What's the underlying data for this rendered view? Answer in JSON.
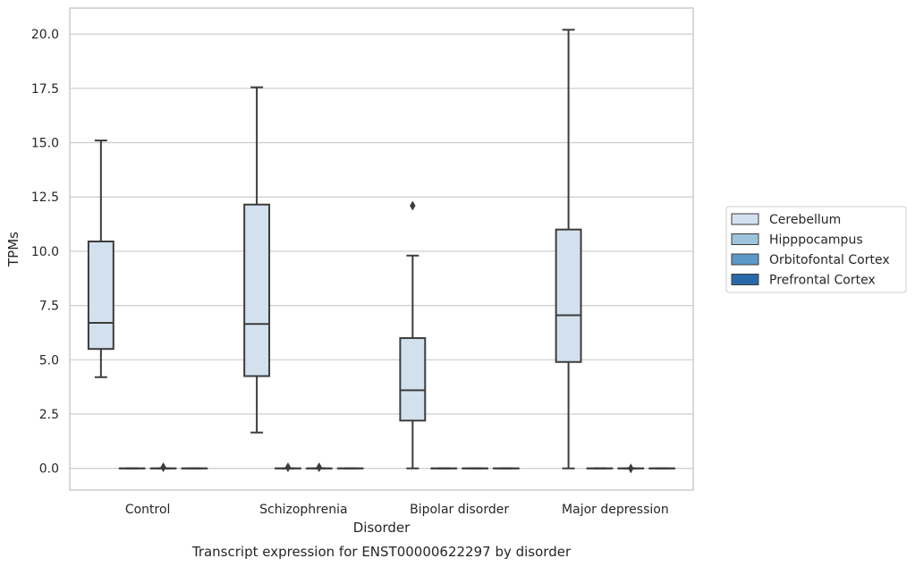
{
  "chart_data": {
    "type": "box",
    "caption": "Transcript expression for ENST00000622297 by disorder",
    "xlabel": "Disorder",
    "ylabel": "TPMs",
    "ylim": [
      -1.0,
      21.2
    ],
    "yticks": [
      0.0,
      2.5,
      5.0,
      7.5,
      10.0,
      12.5,
      15.0,
      17.5,
      20.0
    ],
    "ytick_labels": [
      "0.0",
      "2.5",
      "5.0",
      "7.5",
      "10.0",
      "12.5",
      "15.0",
      "17.5",
      "20.0"
    ],
    "grid": "horizontal",
    "legend_position": "right",
    "categories": [
      "Control",
      "Schizophrenia",
      "Bipolar disorder",
      "Major depression"
    ],
    "series": [
      {
        "name": "Cerebellum",
        "color": "#d3e1ef",
        "boxes": [
          {
            "category": "Control",
            "whisker_low": 4.2,
            "q1": 5.5,
            "median": 6.7,
            "q3": 10.45,
            "whisker_high": 15.1,
            "outliers": []
          },
          {
            "category": "Schizophrenia",
            "whisker_low": 1.65,
            "q1": 4.25,
            "median": 6.65,
            "q3": 12.15,
            "whisker_high": 17.55,
            "outliers": []
          },
          {
            "category": "Bipolar disorder",
            "whisker_low": 0.0,
            "q1": 2.2,
            "median": 3.6,
            "q3": 6.0,
            "whisker_high": 9.8,
            "outliers": [
              12.1
            ]
          },
          {
            "category": "Major depression",
            "whisker_low": 0.0,
            "q1": 4.9,
            "median": 7.05,
            "q3": 11.0,
            "whisker_high": 20.2,
            "outliers": []
          }
        ]
      },
      {
        "name": "Hipppocampus",
        "color": "#9ec4dd",
        "boxes": [
          {
            "category": "Control",
            "whisker_low": 0.0,
            "q1": 0.0,
            "median": 0.0,
            "q3": 0.0,
            "whisker_high": 0.0,
            "outliers": []
          },
          {
            "category": "Schizophrenia",
            "whisker_low": 0.0,
            "q1": 0.0,
            "median": 0.0,
            "q3": 0.0,
            "whisker_high": 0.0,
            "outliers": [
              0.05
            ]
          },
          {
            "category": "Bipolar disorder",
            "whisker_low": 0.0,
            "q1": 0.0,
            "median": 0.0,
            "q3": 0.0,
            "whisker_high": 0.0,
            "outliers": []
          },
          {
            "category": "Major depression",
            "whisker_low": 0.0,
            "q1": 0.0,
            "median": 0.0,
            "q3": 0.0,
            "whisker_high": 0.0,
            "outliers": []
          }
        ]
      },
      {
        "name": "Orbitofontal Cortex",
        "color": "#5b9ac8",
        "boxes": [
          {
            "category": "Control",
            "whisker_low": 0.0,
            "q1": 0.0,
            "median": 0.0,
            "q3": 0.0,
            "whisker_high": 0.0,
            "outliers": [
              0.05
            ]
          },
          {
            "category": "Schizophrenia",
            "whisker_low": 0.0,
            "q1": 0.0,
            "median": 0.0,
            "q3": 0.0,
            "whisker_high": 0.0,
            "outliers": [
              0.05
            ]
          },
          {
            "category": "Bipolar disorder",
            "whisker_low": 0.0,
            "q1": 0.0,
            "median": 0.0,
            "q3": 0.0,
            "whisker_high": 0.0,
            "outliers": []
          },
          {
            "category": "Major depression",
            "whisker_low": 0.0,
            "q1": 0.0,
            "median": 0.0,
            "q3": 0.0,
            "whisker_high": 0.0,
            "outliers": [
              0.0
            ]
          }
        ]
      },
      {
        "name": "Prefrontal Cortex",
        "color": "#2969a9",
        "boxes": [
          {
            "category": "Control",
            "whisker_low": 0.0,
            "q1": 0.0,
            "median": 0.0,
            "q3": 0.0,
            "whisker_high": 0.0,
            "outliers": []
          },
          {
            "category": "Schizophrenia",
            "whisker_low": 0.0,
            "q1": 0.0,
            "median": 0.0,
            "q3": 0.0,
            "whisker_high": 0.0,
            "outliers": []
          },
          {
            "category": "Bipolar disorder",
            "whisker_low": 0.0,
            "q1": 0.0,
            "median": 0.0,
            "q3": 0.0,
            "whisker_high": 0.0,
            "outliers": []
          },
          {
            "category": "Major depression",
            "whisker_low": 0.0,
            "q1": 0.0,
            "median": 0.0,
            "q3": 0.0,
            "whisker_high": 0.0,
            "outliers": []
          }
        ]
      }
    ],
    "style": {
      "line_color": "#3c3c3c",
      "grid_color": "#cccccc",
      "frame_color": "#cccccc",
      "background": "#ffffff"
    }
  }
}
